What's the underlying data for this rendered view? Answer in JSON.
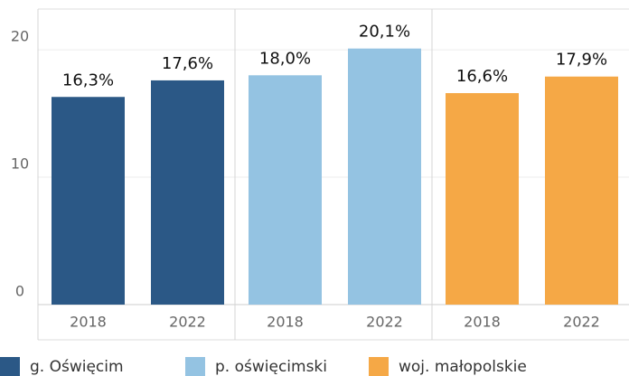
{
  "chart_data": {
    "type": "bar",
    "categories": [
      "2018",
      "2022"
    ],
    "series": [
      {
        "name": "g. Oświęcim",
        "color": "#2b5886",
        "values": [
          16.3,
          17.6
        ],
        "value_labels": [
          "16,3%",
          "17,6%"
        ]
      },
      {
        "name": "p. oświęcimski",
        "color": "#94c3e2",
        "values": [
          18.0,
          20.1
        ],
        "value_labels": [
          "18,0%",
          "20,1%"
        ]
      },
      {
        "name": "woj. małopolskie",
        "color": "#f5a846",
        "values": [
          16.6,
          17.9
        ],
        "value_labels": [
          "16,6%",
          "17,9%"
        ]
      }
    ],
    "ylim": [
      0,
      23.2
    ],
    "yticks": [
      0,
      10,
      20
    ],
    "grid": true,
    "legend": "bottom"
  }
}
